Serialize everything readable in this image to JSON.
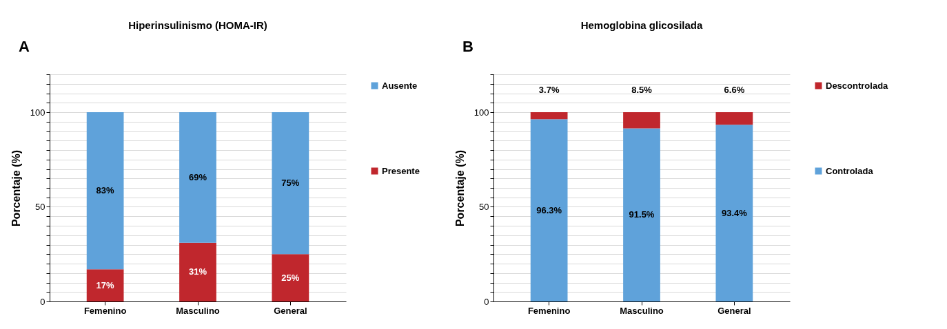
{
  "chart_data": [
    {
      "type": "bar",
      "title": "Hiperinsulinismo (HOMA-IR)",
      "ylabel": "Porcentaje (%)",
      "annotations": [
        "A"
      ],
      "categories": [
        "Femenino",
        "Masculino",
        "General"
      ],
      "stacked": true,
      "legend": "right",
      "grid": "y",
      "ylim": [
        0,
        120
      ],
      "yticks": [
        0,
        {
          "value": 5,
          "label": null
        },
        {
          "value": 10,
          "label": null
        },
        {
          "value": 15,
          "label": null
        },
        {
          "value": 20,
          "label": null
        },
        {
          "value": 25,
          "label": null
        },
        {
          "value": 30,
          "label": null
        },
        {
          "value": 35,
          "label": null
        },
        {
          "value": 40,
          "label": null
        },
        {
          "value": 45,
          "label": null
        },
        50,
        {
          "value": 55,
          "label": null
        },
        {
          "value": 60,
          "label": null
        },
        {
          "value": 65,
          "label": null
        },
        {
          "value": 70,
          "label": null
        },
        {
          "value": 75,
          "label": null
        },
        {
          "value": 80,
          "label": null
        },
        {
          "value": 85,
          "label": null
        },
        {
          "value": 90,
          "label": null
        },
        {
          "value": 95,
          "label": null
        },
        100,
        {
          "value": 105,
          "label": null
        },
        {
          "value": 110,
          "label": null
        },
        {
          "value": 115,
          "label": null
        },
        {
          "value": 120,
          "label": null
        }
      ],
      "series": [
        {
          "name": "Presente",
          "color": "#c0272d",
          "values": [
            17,
            31,
            25
          ],
          "value_labels": [
            "17%",
            "31%",
            "25%"
          ]
        },
        {
          "name": "Ausente",
          "color": "#5fa2da",
          "values": [
            83,
            69,
            75
          ],
          "value_labels": [
            "83%",
            "69%",
            "75%"
          ]
        }
      ]
    },
    {
      "type": "bar",
      "title": "Hemoglobina glicosilada",
      "ylabel": "Porcentaje (%)",
      "annotations": [
        "B"
      ],
      "categories": [
        "Femenino",
        "Masculino",
        "General"
      ],
      "stacked": true,
      "legend": "right",
      "grid": "y",
      "ylim": [
        0,
        120
      ],
      "yticks": [
        0,
        {
          "value": 5,
          "label": null
        },
        {
          "value": 10,
          "label": null
        },
        {
          "value": 15,
          "label": null
        },
        {
          "value": 20,
          "label": null
        },
        {
          "value": 25,
          "label": null
        },
        {
          "value": 30,
          "label": null
        },
        {
          "value": 35,
          "label": null
        },
        {
          "value": 40,
          "label": null
        },
        {
          "value": 45,
          "label": null
        },
        50,
        {
          "value": 55,
          "label": null
        },
        {
          "value": 60,
          "label": null
        },
        {
          "value": 65,
          "label": null
        },
        {
          "value": 70,
          "label": null
        },
        {
          "value": 75,
          "label": null
        },
        {
          "value": 80,
          "label": null
        },
        {
          "value": 85,
          "label": null
        },
        {
          "value": 90,
          "label": null
        },
        {
          "value": 95,
          "label": null
        },
        100,
        {
          "value": 105,
          "label": null
        },
        {
          "value": 110,
          "label": null
        },
        {
          "value": 115,
          "label": null
        },
        {
          "value": 120,
          "label": null
        }
      ],
      "series": [
        {
          "name": "Controlada",
          "color": "#5fa2da",
          "values": [
            96.3,
            91.5,
            93.4
          ],
          "value_labels": [
            "96.3%",
            "91.5%",
            "93.4%"
          ]
        },
        {
          "name": "Descontrolada",
          "color": "#c0272d",
          "values": [
            3.7,
            8.5,
            6.6
          ],
          "value_labels": [
            "3.7%",
            "8.5%",
            "6.6%"
          ]
        }
      ]
    }
  ]
}
